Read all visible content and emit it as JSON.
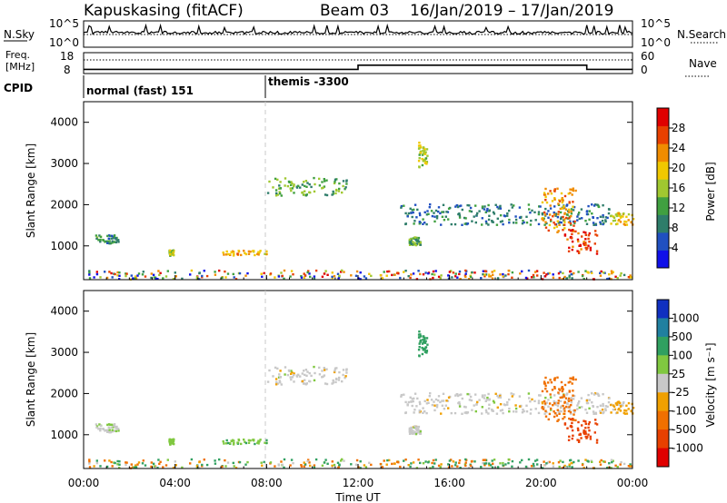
{
  "header": {
    "station": "Kapuskasing (fitACF)",
    "beam": "Beam 03",
    "date_range": "16/Jan/2019 – 17/Jan/2019"
  },
  "strips": {
    "nsky_label": "N.Sky",
    "nsky_ticks": [
      "10^5",
      "10^0"
    ],
    "nsearch_label": "N.Search",
    "nsearch_ticks": [
      "10^5",
      "10^0"
    ],
    "freq_label": "Freq.",
    "freq_unit": "[MHz]",
    "freq_ticks": [
      "18",
      "8"
    ],
    "nave_label": "Nave",
    "nave_ticks": [
      "60",
      "0"
    ],
    "cpid_label": "CPID",
    "cpid_segments": [
      {
        "label": "normal (fast) 151",
        "start_hour": 0
      },
      {
        "label": "themis -3300",
        "start_hour": 8
      }
    ]
  },
  "axes": {
    "ylabel": "Slant Range [km]",
    "xlabel": "Time UT",
    "x_ticks": [
      "00:00",
      "04:00",
      "08:00",
      "12:00",
      "16:00",
      "20:00",
      "00:00"
    ],
    "y_ticks": [
      "1000",
      "2000",
      "3000",
      "4000"
    ]
  },
  "power_scale": {
    "title": "Power [dB]",
    "ticks": [
      "4",
      "8",
      "12",
      "16",
      "20",
      "24",
      "28"
    ],
    "colors": [
      "#1010e8",
      "#2050c0",
      "#2e7d6a",
      "#40a040",
      "#a0c830",
      "#f0c800",
      "#f08c00",
      "#e84000",
      "#e00000"
    ]
  },
  "velocity_scale": {
    "title": "Velocity [m s⁻¹]",
    "ticks": [
      "1000",
      "500",
      "100",
      "25",
      "-25",
      "-100",
      "-500",
      "-1000"
    ],
    "colors": [
      "#1030c0",
      "#2080a0",
      "#30a060",
      "#80c840",
      "#c8c8c8",
      "#f0a000",
      "#f07000",
      "#e84000",
      "#e00000"
    ]
  },
  "chart_data": {
    "type": "heatmap",
    "title": "Kapuskasing (fitACF) Beam 03 16/Jan/2019 – 17/Jan/2019",
    "xlabel": "Time UT",
    "ylabel": "Slant Range [km]",
    "xlim_hours": [
      0,
      24
    ],
    "ylim_km": [
      180,
      4500
    ],
    "panels": [
      "Power [dB]",
      "Velocity [m s⁻¹]"
    ],
    "power_range_db": [
      0,
      30
    ],
    "velocity_range_ms": [
      -1000,
      1000
    ],
    "scatter_regions": [
      {
        "t_start": 0.2,
        "t_end": 24.0,
        "r_start": 180,
        "r_end": 400,
        "power": "mixed",
        "velocity": "mixed"
      },
      {
        "t_start": 0.5,
        "t_end": 1.5,
        "r_start": 1050,
        "r_end": 1250,
        "power": 10,
        "velocity": 10
      },
      {
        "t_start": 3.7,
        "t_end": 3.9,
        "r_start": 750,
        "r_end": 900,
        "power": 14,
        "velocity": 60
      },
      {
        "t_start": 5.9,
        "t_end": 8.0,
        "r_start": 750,
        "r_end": 880,
        "power": 20,
        "velocity": 80
      },
      {
        "t_start": 8.0,
        "t_end": 11.5,
        "r_start": 2200,
        "r_end": 2650,
        "power": 12,
        "velocity": 0
      },
      {
        "t_start": 14.2,
        "t_end": 14.7,
        "r_start": 1000,
        "r_end": 1200,
        "power": 12,
        "velocity": 0
      },
      {
        "t_start": 14.6,
        "t_end": 15.0,
        "r_start": 2900,
        "r_end": 3500,
        "power": 16,
        "velocity": 150
      },
      {
        "t_start": 13.8,
        "t_end": 23.0,
        "r_start": 1500,
        "r_end": 2000,
        "power": 8,
        "velocity": 0
      },
      {
        "t_start": 20.0,
        "t_end": 21.5,
        "r_start": 1300,
        "r_end": 2400,
        "power": 22,
        "velocity": -400
      },
      {
        "t_start": 21.0,
        "t_end": 22.5,
        "r_start": 800,
        "r_end": 1400,
        "power": 26,
        "velocity": -600
      },
      {
        "t_start": 23.0,
        "t_end": 24.0,
        "r_start": 1500,
        "r_end": 1800,
        "power": 18,
        "velocity": -50
      }
    ],
    "frequency_mhz": [
      {
        "t_start": 0,
        "t_end": 12,
        "value": 10
      },
      {
        "t_start": 12,
        "t_end": 22,
        "value": 12
      },
      {
        "t_start": 22,
        "t_end": 24,
        "value": 10
      }
    ]
  }
}
